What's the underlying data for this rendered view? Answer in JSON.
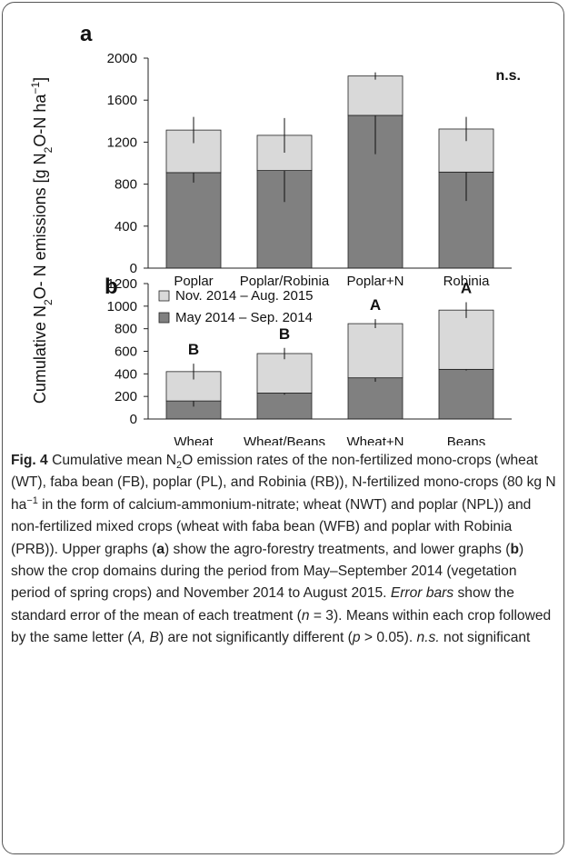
{
  "chart_data": [
    {
      "type": "stacked-bar",
      "panel": "a",
      "annotation": "n.s.",
      "ylabel": [
        {
          "text": "Cumulative N"
        },
        {
          "text": "2",
          "style": "sub"
        },
        {
          "text": "O- N emissions [g N"
        },
        {
          "text": "2",
          "style": "sub"
        },
        {
          "text": "O-N ha"
        },
        {
          "text": "−1",
          "style": "sup"
        },
        {
          "text": "]"
        }
      ],
      "categories": [
        "Poplar",
        "Poplar/Robinia",
        "Poplar+N",
        "Robinia"
      ],
      "series": [
        {
          "color": "#808080",
          "values": [
            910,
            930,
            1455,
            915
          ],
          "errors": [
            95,
            300,
            370,
            275
          ]
        },
        {
          "color": "#d9d9d9",
          "values": [
            405,
            335,
            375,
            410
          ],
          "errors": [
            125,
            165,
            35,
            115
          ]
        }
      ],
      "ylim": [
        0,
        2000
      ],
      "yticks": [
        0,
        400,
        800,
        1200,
        1600,
        2000
      ]
    },
    {
      "type": "stacked-bar",
      "panel": "b",
      "legend": "top-left",
      "categories": [
        "Wheat",
        "Wheat/Beans",
        "Wheat+N",
        "Beans"
      ],
      "letters": [
        "B",
        "B",
        "A",
        "A"
      ],
      "series": [
        {
          "name": "May 2014 – Sep. 2014",
          "color": "#808080",
          "values": [
            160,
            230,
            365,
            440
          ],
          "errors": [
            50,
            15,
            35,
            10
          ]
        },
        {
          "name": "Nov. 2014 – Aug. 2015",
          "color": "#d9d9d9",
          "values": [
            260,
            350,
            480,
            525
          ],
          "errors": [
            70,
            50,
            40,
            70
          ]
        }
      ],
      "ylim": [
        0,
        1200
      ],
      "yticks": [
        0,
        200,
        400,
        600,
        800,
        1000,
        1200
      ]
    }
  ],
  "caption": [
    {
      "text": "Fig. 4",
      "style": "bold"
    },
    {
      "text": " Cumulative mean N"
    },
    {
      "text": "2",
      "style": "sub"
    },
    {
      "text": "O emission rates of the non-fertilized mono-crops (wheat (WT), faba bean (FB), poplar (PL), and Robinia (RB)), N-fertilized mono-crops (80 kg N ha"
    },
    {
      "text": "−1",
      "style": "sup"
    },
    {
      "text": " in the form of calcium-ammonium-nitrate; wheat (NWT) and poplar (NPL)) and non-fertilized mixed crops (wheat with faba bean (WFB) and poplar with Robinia (PRB)). Upper graphs ("
    },
    {
      "text": "a",
      "style": "bold"
    },
    {
      "text": ") show the agro-forestry treatments, and lower graphs ("
    },
    {
      "text": "b",
      "style": "bold"
    },
    {
      "text": ") show the crop domains during the period from May–September 2014 (vegetation period of spring crops) and November 2014 to August 2015. "
    },
    {
      "text": "Error bars",
      "style": "italic"
    },
    {
      "text": " show the standard error of the mean of each treatment ("
    },
    {
      "text": "n",
      "style": "italic"
    },
    {
      "text": " = 3). Means within each crop followed by the same letter ("
    },
    {
      "text": "A, B",
      "style": "italic"
    },
    {
      "text": ") are not significantly different ("
    },
    {
      "text": "p",
      "style": "italic"
    },
    {
      "text": " > 0.05). "
    },
    {
      "text": "n.s.",
      "style": "italic"
    },
    {
      "text": " not significant"
    }
  ]
}
